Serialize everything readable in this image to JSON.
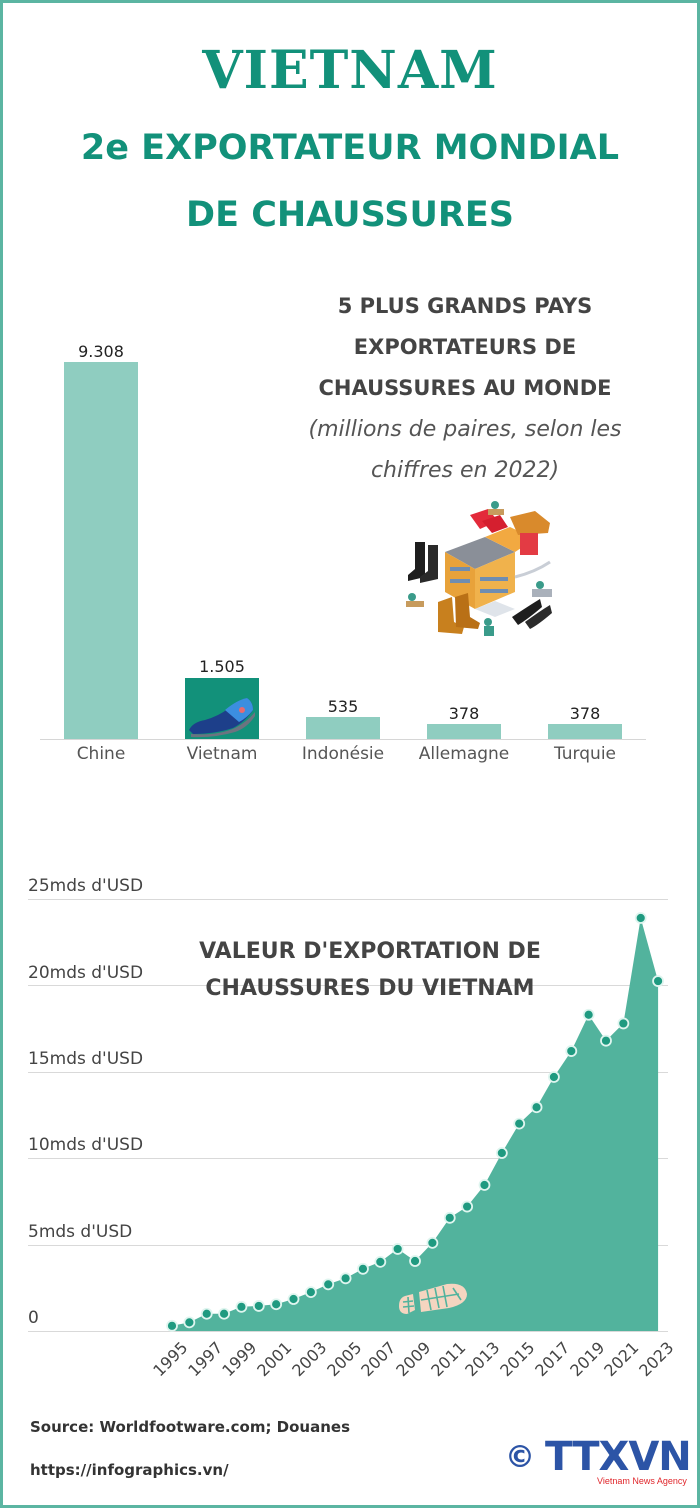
{
  "header": {
    "title": "VIETNAM",
    "subtitle_line1": "2e EXPORTATEUR MONDIAL",
    "subtitle_line2": "DE CHAUSSURES"
  },
  "bar_section": {
    "title_lines": [
      "5 PLUS GRANDS PAYS",
      "EXPORTATEURS DE",
      "CHAUSSURES AU MONDE"
    ],
    "note_lines": [
      "(millions de paires, selon les",
      "chiffres en 2022)"
    ],
    "illustration": "shoe-factory-illustration",
    "bar_icon": "sneaker-icon"
  },
  "line_section": {
    "title_lines": [
      "VALEUR D'EXPORTATION DE",
      "CHAUSSURES DU VIETNAM"
    ],
    "decoration": "footprint-icon"
  },
  "footer": {
    "source": "Source: Worldfootware.com; Douanes",
    "url": "https://infographics.vn/",
    "logo_text": "TTXVN",
    "logo_caption": "Vietnam News Agency",
    "copyright_symbol": "©"
  },
  "colors": {
    "brand": "#12917a",
    "bar": "#8fcdc0",
    "area": "#52b39d",
    "frame": "#5bb5a2",
    "logo_blue": "#2c54a6",
    "logo_red": "#e0262b"
  },
  "chart_data": [
    {
      "type": "bar",
      "title": "5 PLUS GRANDS PAYS EXPORTATEURS DE CHAUSSURES AU MONDE",
      "subtitle": "(millions de paires, selon les chiffres en 2022)",
      "categories": [
        "Chine",
        "Vietnam",
        "Indonésie",
        "Allemagne",
        "Turquie"
      ],
      "values": [
        9308,
        1505,
        535,
        378,
        378
      ],
      "value_labels": [
        "9.308",
        "1.505",
        "535",
        "378",
        "378"
      ],
      "highlight": "Vietnam",
      "xlabel": "",
      "ylabel": "millions de paires",
      "grid": false,
      "legend": "none"
    },
    {
      "type": "area",
      "title": "VALEUR D'EXPORTATION DE CHAUSSURES DU VIETNAM",
      "x": [
        1995,
        1996,
        1997,
        1998,
        1999,
        2000,
        2001,
        2002,
        2003,
        2004,
        2005,
        2006,
        2007,
        2008,
        2009,
        2010,
        2011,
        2012,
        2013,
        2014,
        2015,
        2016,
        2017,
        2018,
        2019,
        2020,
        2021,
        2022,
        2023
      ],
      "series": [
        {
          "name": "Valeur d'exportation (mds d'USD)",
          "values": [
            0.3,
            0.5,
            1.0,
            1.0,
            1.4,
            1.45,
            1.55,
            1.85,
            2.25,
            2.7,
            3.05,
            3.6,
            4.0,
            4.75,
            4.05,
            5.1,
            6.55,
            7.2,
            8.45,
            10.3,
            12.0,
            12.95,
            14.7,
            16.2,
            18.3,
            16.8,
            17.8,
            23.9,
            20.25
          ]
        }
      ],
      "x_tick_labels": [
        "1995",
        "1997",
        "1999",
        "2001",
        "2003",
        "2005",
        "2007",
        "2009",
        "2011",
        "2013",
        "2015",
        "2017",
        "2019",
        "2021",
        "2023"
      ],
      "y_tick_labels": [
        "0",
        "5mds d'USD",
        "10mds d'USD",
        "15mds d'USD",
        "20mds d'USD",
        "25mds d'USD"
      ],
      "y_ticks": [
        0,
        5,
        10,
        15,
        20,
        25
      ],
      "ylim": [
        0,
        25
      ],
      "xlabel": "",
      "ylabel": "mds d'USD",
      "grid": true,
      "legend": "none"
    }
  ]
}
